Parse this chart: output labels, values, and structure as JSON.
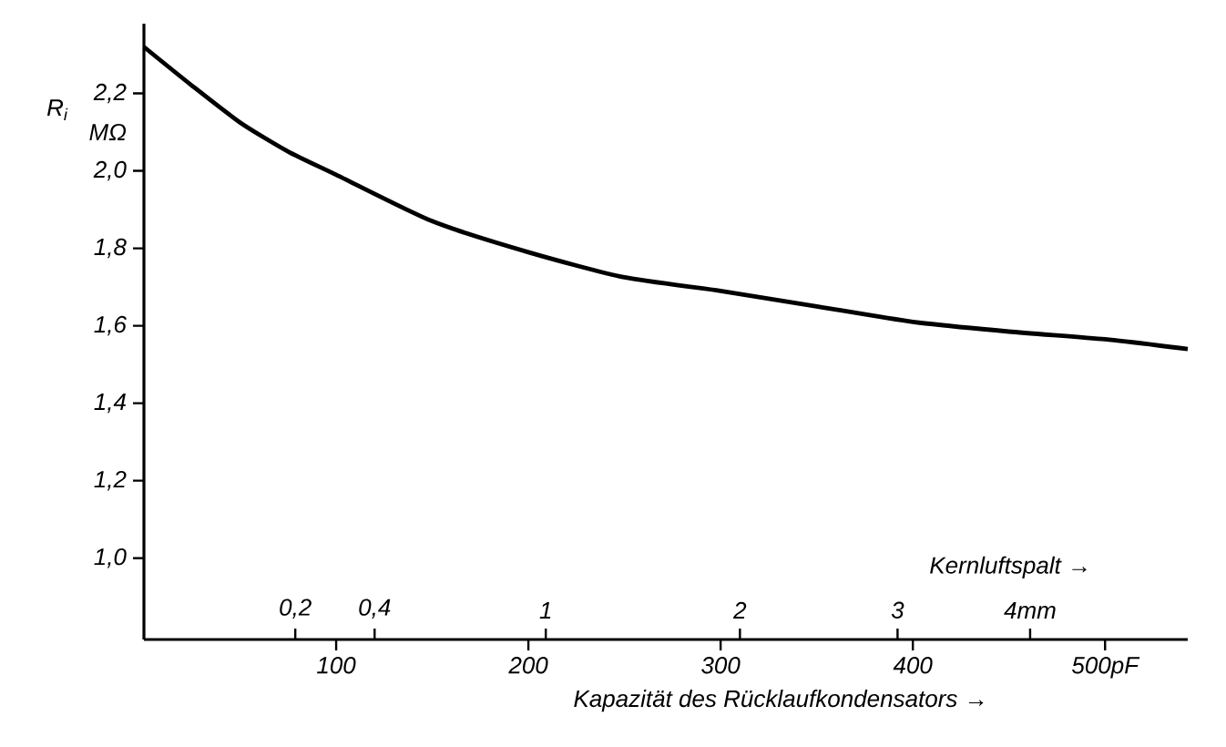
{
  "chart_data": {
    "type": "line",
    "xlabel": "Kapazität des Rücklaufkondensators →",
    "ylabel": "R$_{i}$",
    "annotations": [
      "MΩ",
      "Kernluftspalt →",
      "0,2",
      "0,4",
      "1",
      "2",
      "3",
      "4mm"
    ],
    "xlim": [
      0,
      543
    ],
    "ylim": [
      0.79,
      2.38
    ],
    "xticks": [
      100,
      200,
      300,
      400,
      {
        "value": 500,
        "label": "500pF"
      }
    ],
    "yticks": [
      {
        "value": 1.0,
        "label": "1,0"
      },
      {
        "value": 1.2,
        "label": "1,2"
      },
      {
        "value": 1.4,
        "label": "1,4"
      },
      {
        "value": 1.6,
        "label": "1,6"
      },
      {
        "value": 1.8,
        "label": "1,8"
      },
      {
        "value": 2.0,
        "label": "2,0"
      },
      {
        "value": 2.2,
        "label": "2,2"
      }
    ],
    "grid": false,
    "legend": false,
    "series": [
      {
        "color": "#000000",
        "x": [
          0,
          25,
          50,
          75,
          100,
          150,
          200,
          250,
          300,
          350,
          400,
          450,
          500,
          543
        ],
        "values": [
          2.32,
          2.22,
          2.125,
          2.05,
          1.99,
          1.87,
          1.79,
          1.725,
          1.69,
          1.65,
          1.61,
          1.585,
          1.565,
          1.54
        ]
      }
    ]
  }
}
